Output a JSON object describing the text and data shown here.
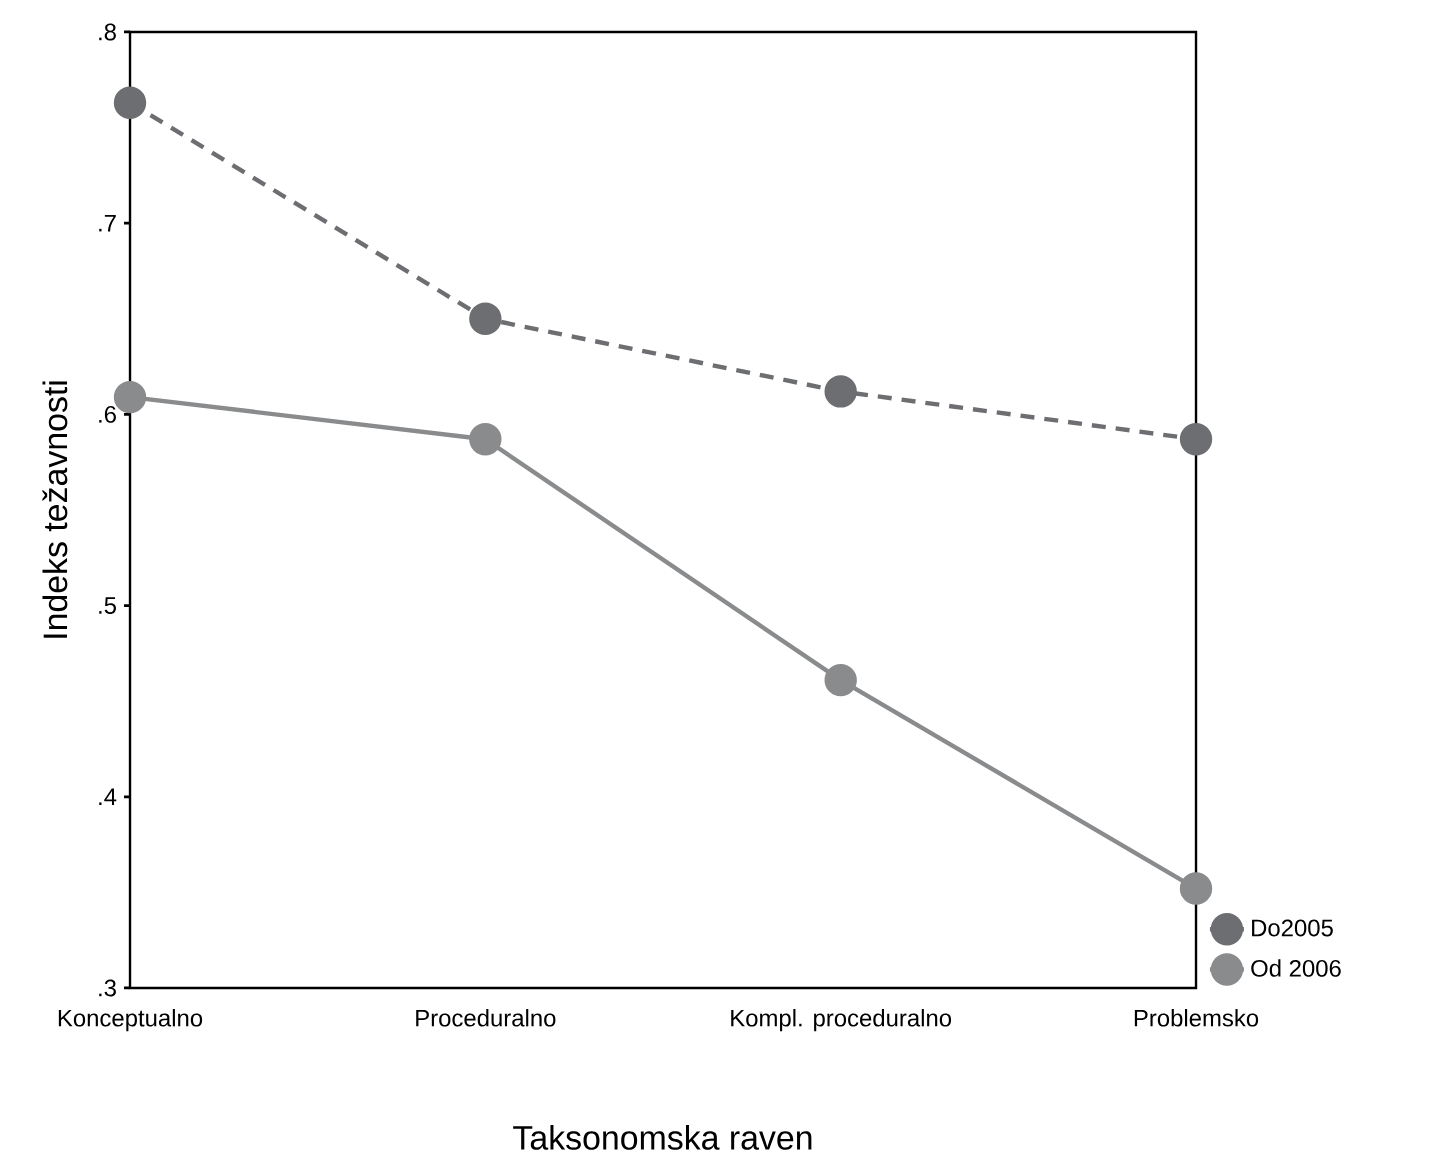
{
  "chart_data": {
    "type": "line",
    "xlabel": "Taksonomska raven",
    "ylabel": "Indeks težavnosti",
    "categories": [
      "Konceptualno",
      "Proceduralno",
      "Kompl. proceduralno",
      "Problemsko"
    ],
    "series": [
      {
        "name": "Do2005",
        "color": "#6d6e71",
        "line_style": "dashed",
        "values": [
          0.763,
          0.65,
          0.612,
          0.587
        ]
      },
      {
        "name": "Od 2006",
        "color": "#8a8b8d",
        "line_style": "solid",
        "values": [
          0.609,
          0.587,
          0.461,
          0.352
        ]
      }
    ],
    "ylim": [
      0.3,
      0.8
    ],
    "yticks": [
      {
        "value": 0.3,
        "label": ".3"
      },
      {
        "value": 0.4,
        "label": ".4"
      },
      {
        "value": 0.5,
        "label": ".5"
      },
      {
        "value": 0.6,
        "label": ".6"
      },
      {
        "value": 0.7,
        "label": ".7"
      },
      {
        "value": 0.8,
        "label": ".8"
      }
    ],
    "marker": "circle",
    "grid": false,
    "legend": "bottom right"
  }
}
